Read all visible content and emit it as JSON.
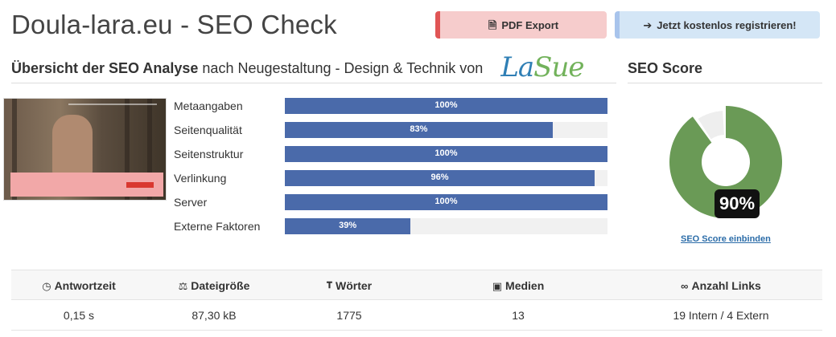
{
  "header": {
    "title": "Doula-lara.eu - SEO Check",
    "pdf_button": "PDF Export",
    "register_button": "Jetzt kostenlos registrieren!"
  },
  "overview": {
    "heading_bold": "Übersicht der SEO Analyse",
    "heading_light": "nach Neugestaltung",
    "heading_tail": "- Design & Technik von",
    "logo_part1": "La",
    "logo_part2": "Sue"
  },
  "score_section": {
    "heading": "SEO Score",
    "score_label": "90%",
    "score_value": 90,
    "embed_link": "SEO Score einbinden",
    "colors": {
      "main": "#6a9a56",
      "rest": "#eeeeee"
    }
  },
  "metrics": [
    {
      "label": "Metaangaben",
      "value": 100,
      "value_label": "100%"
    },
    {
      "label": "Seitenqualität",
      "value": 83,
      "value_label": "83%"
    },
    {
      "label": "Seitenstruktur",
      "value": 100,
      "value_label": "100%"
    },
    {
      "label": "Verlinkung",
      "value": 96,
      "value_label": "96%"
    },
    {
      "label": "Server",
      "value": 100,
      "value_label": "100%"
    },
    {
      "label": "Externe Faktoren",
      "value": 39,
      "value_label": "39%"
    }
  ],
  "stats": {
    "headers": [
      {
        "label": "Antwortzeit",
        "icon": "gauge-icon"
      },
      {
        "label": "Dateigröße",
        "icon": "scale-icon"
      },
      {
        "label": "Wörter",
        "icon": "text-size-icon"
      },
      {
        "label": "Medien",
        "icon": "image-icon"
      },
      {
        "label": "Anzahl Links",
        "icon": "link-icon"
      }
    ],
    "values": [
      "0,15 s",
      "87,30 kB",
      "1775",
      "13",
      "19 Intern / 4 Extern"
    ]
  },
  "colors": {
    "bar": "#4a6aaa",
    "pdf_accent": "#e05555",
    "register_accent": "#a8c4ec"
  }
}
